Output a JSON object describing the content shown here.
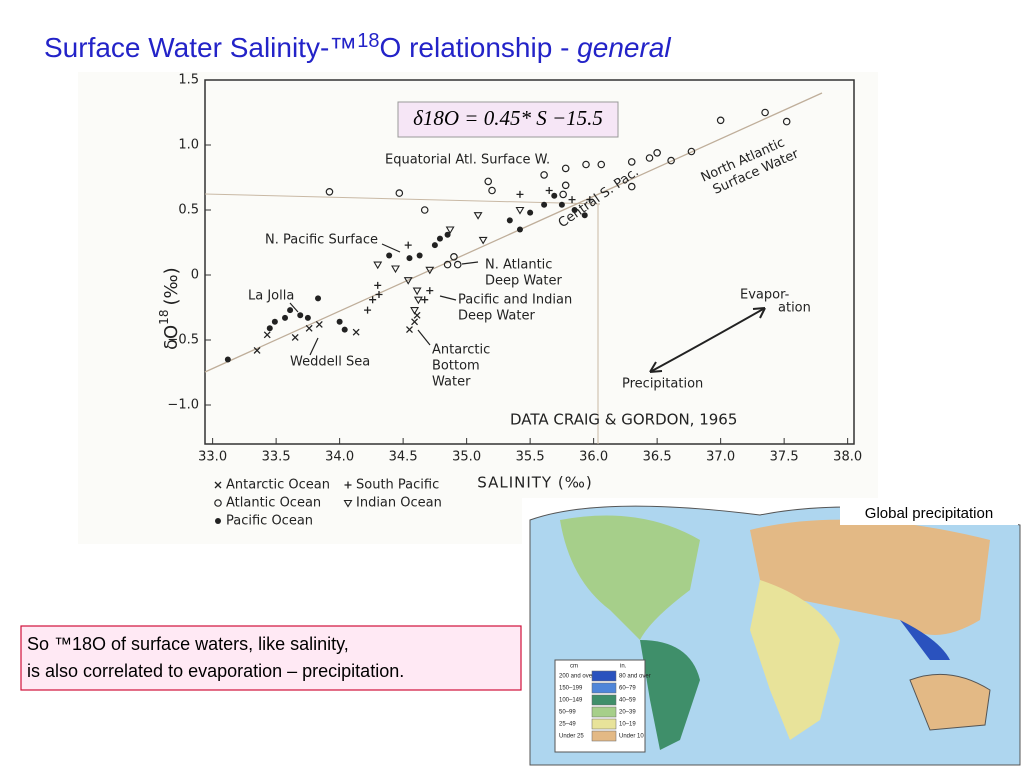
{
  "title": {
    "text": "Surface Water Salinity-™",
    "sup": "18",
    "rest": "O relationship - ",
    "emphasis": "general"
  },
  "chart_data": {
    "type": "scatter",
    "xlabel": "SALINITY (‰)",
    "ylabel": {
      "main": "δO",
      "sup": "18",
      "unit": "(‰)"
    },
    "xlim": [
      32.94,
      38.05
    ],
    "ylim": [
      -1.3,
      1.5
    ],
    "xticks": [
      {
        "value": 33,
        "label": "33.0"
      },
      33.5,
      {
        "value": 34,
        "label": "34.0"
      },
      34.5,
      {
        "value": 35,
        "label": "35.0"
      },
      35.5,
      {
        "value": 36,
        "label": "36.0"
      },
      36.5,
      {
        "value": 37,
        "label": "37.0"
      },
      37.5,
      {
        "value": 38,
        "label": "38.0"
      }
    ],
    "yticks": [
      {
        "value": -1,
        "label": "−1.0"
      },
      {
        "value": -0.5,
        "label": "−0.5"
      },
      0,
      0.5,
      {
        "value": 1,
        "label": "1.0"
      },
      1.5
    ],
    "legend": "bottom-left",
    "series": [
      {
        "name": "Antarctic Ocean",
        "marker": "x",
        "color": "#222",
        "x": [
          33.35,
          33.43,
          33.65,
          33.76,
          33.84,
          34.13,
          34.55,
          34.59,
          34.61
        ],
        "values": [
          -0.58,
          -0.46,
          -0.48,
          -0.41,
          -0.38,
          -0.44,
          -0.42,
          -0.36,
          -0.31
        ]
      },
      {
        "name": "Atlantic Ocean",
        "marker": "o",
        "color": "#222",
        "x": [
          37.0,
          37.35,
          37.52,
          33.92,
          34.47,
          34.67,
          35.17,
          35.2,
          35.61,
          35.78,
          35.78,
          35.94,
          36.06,
          36.3,
          36.3,
          36.44,
          36.5,
          36.61,
          36.77,
          35.76,
          34.9,
          34.85,
          34.93
        ],
        "values": [
          1.19,
          1.25,
          1.18,
          0.64,
          0.63,
          0.5,
          0.72,
          0.65,
          0.77,
          0.82,
          0.69,
          0.85,
          0.85,
          0.87,
          0.68,
          0.9,
          0.94,
          0.88,
          0.95,
          0.62,
          0.14,
          0.08,
          0.08
        ]
      },
      {
        "name": "Pacific Ocean",
        "marker": "dot",
        "color": "#222",
        "x": [
          33.12,
          33.45,
          33.49,
          33.57,
          33.61,
          33.69,
          33.83,
          33.75,
          34.0,
          34.04,
          34.39,
          34.55,
          34.63,
          34.75,
          34.79,
          34.85,
          35.42,
          35.5,
          35.61,
          35.69,
          35.75,
          35.85,
          35.93,
          35.34
        ],
        "values": [
          -0.65,
          -0.41,
          -0.36,
          -0.33,
          -0.27,
          -0.31,
          -0.18,
          -0.33,
          -0.36,
          -0.42,
          0.15,
          0.13,
          0.15,
          0.23,
          0.28,
          0.31,
          0.35,
          0.48,
          0.54,
          0.61,
          0.54,
          0.5,
          0.46,
          0.42
        ]
      },
      {
        "name": "South Pacific",
        "marker": "+",
        "color": "#222",
        "x": [
          34.26,
          34.3,
          34.31,
          34.22,
          34.67,
          34.71,
          34.54,
          35.42,
          35.83,
          35.97,
          35.65
        ],
        "values": [
          -0.19,
          -0.08,
          -0.15,
          -0.27,
          -0.19,
          -0.12,
          0.23,
          0.62,
          0.58,
          0.58,
          0.65
        ]
      },
      {
        "name": "Indian Ocean",
        "marker": "tri",
        "color": "#222",
        "x": [
          34.3,
          34.44,
          34.54,
          34.61,
          34.62,
          34.59,
          34.71,
          34.87,
          35.09,
          35.42,
          35.13
        ],
        "values": [
          0.08,
          0.05,
          -0.04,
          -0.12,
          -0.19,
          -0.27,
          0.04,
          0.35,
          0.46,
          0.5,
          0.27
        ]
      }
    ],
    "equation": "δ18O = 0.45* S −15.5",
    "annotations": [
      [
        "Equatorial Atl. Surface W."
      ],
      [
        "North Atlantic",
        "Surface Water"
      ],
      [
        "Central S. Pac."
      ],
      [
        "N. Pacific Surface"
      ],
      [
        "N. Atlantic",
        "Deep Water"
      ],
      [
        "La Jolla"
      ],
      [
        "Pacific and Indian",
        "Deep Water"
      ],
      [
        "Weddell Sea"
      ],
      [
        "Antarctic",
        "Bottom",
        "Water"
      ],
      [
        "Evapor-",
        "ation"
      ],
      [
        "Precipitation"
      ],
      [
        "DATA CRAIG & GORDON, 1965"
      ]
    ]
  },
  "map": {
    "caption": "Global precipitation",
    "legend": {
      "cm_header": "cm",
      "in_header": "in.",
      "rows": [
        {
          "cm": "200 and over",
          "in": "80 and over",
          "color": "#2a52be"
        },
        {
          "cm": "150–199",
          "in": "60–79",
          "color": "#4f86d9"
        },
        {
          "cm": "100–149",
          "in": "40–59",
          "color": "#3f8f6a"
        },
        {
          "cm": "50–99",
          "in": "20–39",
          "color": "#a6cf8a"
        },
        {
          "cm": "25–49",
          "in": "10–19",
          "color": "#e8e39a"
        },
        {
          "cm": "Under 25",
          "in": "Under 10",
          "color": "#e3b985"
        }
      ]
    }
  },
  "note": {
    "lines": [
      "So ™18O of surface waters, like salinity,",
      "is also correlated  to evaporation – precipitation."
    ]
  }
}
